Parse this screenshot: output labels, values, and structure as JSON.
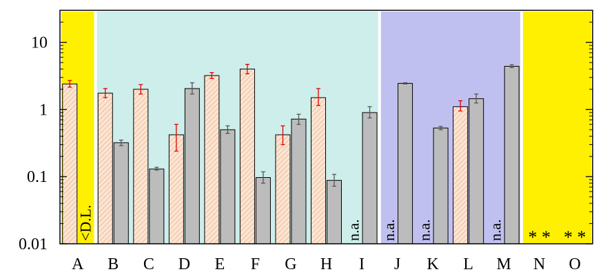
{
  "chart_data": {
    "type": "bar",
    "yscale": "log",
    "ylim": [
      0.01,
      30
    ],
    "y_ticks": [
      "0.01",
      "0.1",
      "1",
      "10"
    ],
    "categories": [
      "A",
      "B",
      "C",
      "D",
      "E",
      "F",
      "G",
      "H",
      "I",
      "J",
      "K",
      "L",
      "M",
      "N",
      "O"
    ],
    "series": [
      {
        "fill": "#fbe4d2",
        "hatch": "#e8a47a",
        "error_color": "#e00000",
        "values": [
          2.4,
          1.75,
          2.0,
          0.42,
          3.2,
          4.0,
          0.42,
          1.5,
          null,
          null,
          null,
          1.1,
          null,
          null,
          null
        ],
        "err_low": [
          2.15,
          1.5,
          1.7,
          0.24,
          2.9,
          3.4,
          0.3,
          1.15,
          null,
          null,
          null,
          0.95,
          null,
          null,
          null
        ],
        "err_high": [
          2.7,
          2.05,
          2.35,
          0.6,
          3.55,
          4.7,
          0.57,
          2.05,
          null,
          null,
          null,
          1.35,
          null,
          null,
          null
        ]
      },
      {
        "fill": "#bcbcbc",
        "error_color": "#555555",
        "values": [
          null,
          0.32,
          0.13,
          2.05,
          0.5,
          0.097,
          0.72,
          0.088,
          0.9,
          2.45,
          0.53,
          1.45,
          4.4,
          null,
          null
        ],
        "err_low": [
          null,
          0.29,
          0.125,
          1.7,
          0.44,
          0.08,
          0.6,
          0.072,
          0.75,
          2.4,
          0.5,
          1.25,
          4.2,
          null,
          null
        ],
        "err_high": [
          null,
          0.35,
          0.138,
          2.5,
          0.57,
          0.118,
          0.85,
          0.108,
          1.1,
          2.5,
          0.56,
          1.7,
          4.65,
          null,
          null
        ]
      }
    ],
    "regions": [
      {
        "from": "A",
        "to": "A",
        "color": "#ffef00"
      },
      {
        "from": "B",
        "to": "I",
        "color": "#cdeeea"
      },
      {
        "from": "J",
        "to": "M",
        "color": "#c0c0f0"
      },
      {
        "from": "N",
        "to": "O",
        "color": "#ffef00"
      }
    ],
    "annotations": [
      {
        "category": "A",
        "slot": 1,
        "text": "<D.L."
      },
      {
        "category": "I",
        "slot": 0,
        "text": "n.a."
      },
      {
        "category": "J",
        "slot": 0,
        "text": "n.a."
      },
      {
        "category": "K",
        "slot": 0,
        "text": "n.a."
      },
      {
        "category": "M",
        "slot": 0,
        "text": "n.a."
      }
    ],
    "star_annotations": [
      {
        "category": "N",
        "text": "* *"
      },
      {
        "category": "O",
        "text": "* *"
      }
    ],
    "grid": false
  }
}
